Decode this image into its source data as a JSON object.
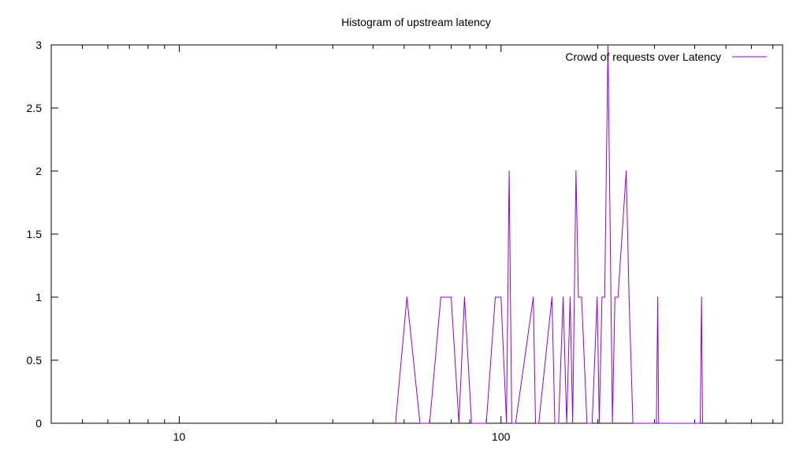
{
  "chart_data": {
    "type": "line",
    "title": "Histogram of upstream latency",
    "xlabel": "",
    "ylabel": "",
    "x_scale": "log",
    "xlim": [
      4,
      750
    ],
    "ylim": [
      0,
      3
    ],
    "x_ticks": [
      10,
      100
    ],
    "x_tick_labels": [
      "10",
      "100"
    ],
    "y_ticks": [
      0,
      0.5,
      1,
      1.5,
      2,
      2.5,
      3
    ],
    "y_tick_labels": [
      "0",
      "0.5",
      "1",
      "1.5",
      "2",
      "2.5",
      "3"
    ],
    "legend_position": "top-right",
    "grid": false,
    "series": [
      {
        "name": "Crowd of requests over Latency",
        "color": "#9400d3",
        "x": [
          47,
          51,
          56,
          60,
          65,
          70,
          74,
          77,
          81,
          90,
          96,
          100,
          104,
          106,
          108,
          111,
          126,
          128,
          131,
          144,
          147,
          151,
          156,
          160,
          164,
          167,
          171,
          174,
          178,
          185,
          192,
          199,
          202,
          206,
          210,
          215,
          222,
          226,
          231,
          245,
          250,
          257,
          270,
          304,
          307,
          309,
          416,
          420,
          423
        ],
        "values": [
          0,
          1,
          0,
          0,
          1,
          1,
          0,
          1,
          0,
          0,
          1,
          1,
          0,
          2,
          0,
          0,
          1,
          0,
          0,
          1,
          0,
          0,
          1,
          0,
          1,
          0,
          2,
          1,
          1,
          0,
          0,
          1,
          0,
          1,
          1,
          3,
          0,
          1,
          1,
          2,
          1,
          0,
          0,
          0,
          1,
          0,
          0,
          1,
          0
        ]
      }
    ]
  }
}
